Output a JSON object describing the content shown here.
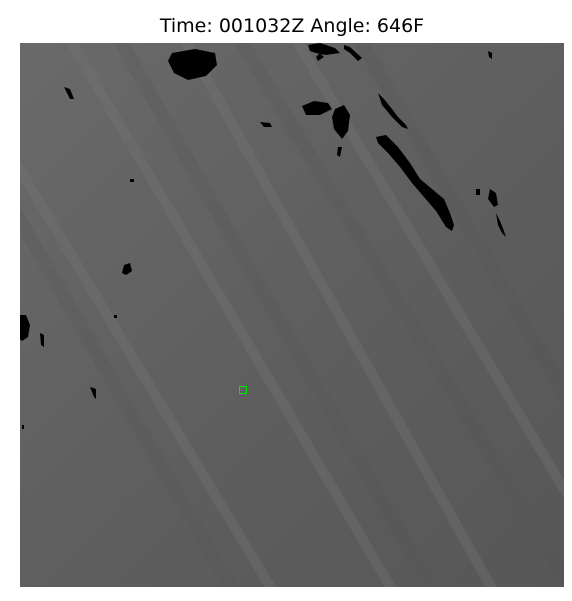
{
  "title": "Time: 001032Z Angle: 646F",
  "marker_color": "#00e600"
}
